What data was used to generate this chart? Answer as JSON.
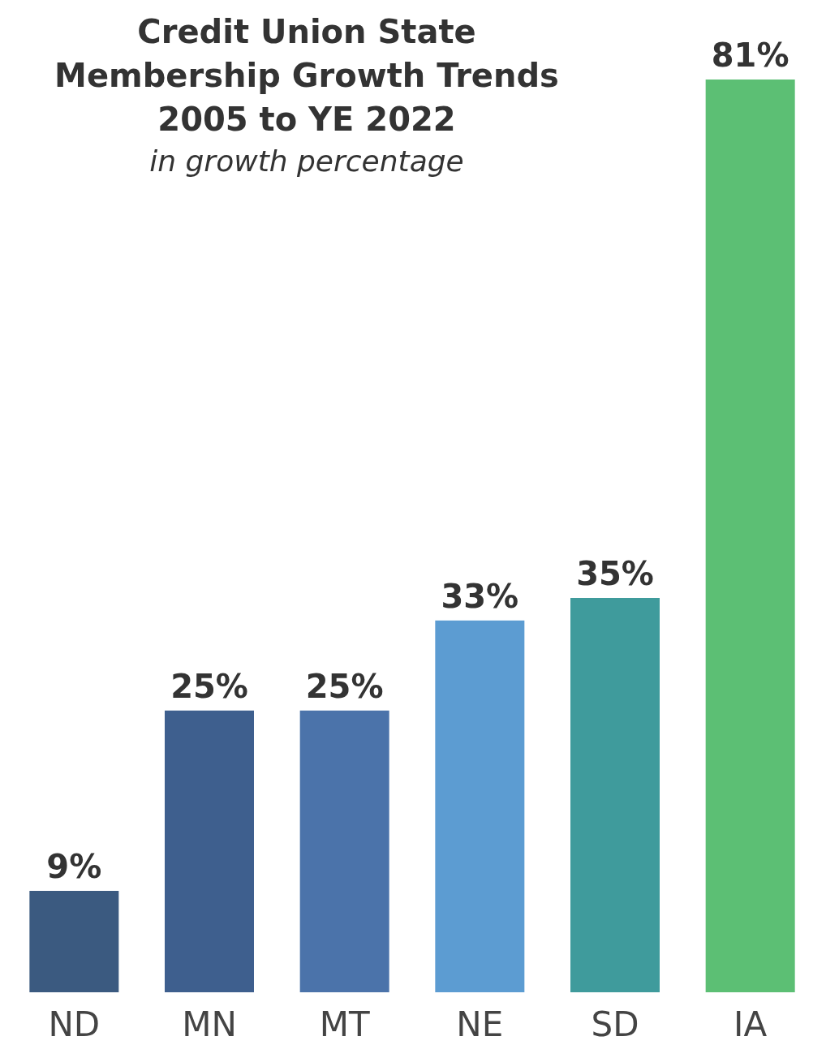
{
  "chart_data": {
    "type": "bar",
    "title": "Credit Union State Membership Growth Trends 2005 to YE 2022",
    "subtitle": "in growth percentage",
    "categories": [
      "ND",
      "MN",
      "MT",
      "NE",
      "SD",
      "IA"
    ],
    "values": [
      9,
      25,
      25,
      33,
      35,
      81
    ],
    "value_labels": [
      "9%",
      "25%",
      "25%",
      "33%",
      "35%",
      "81%"
    ],
    "colors": [
      "#3b5a80",
      "#3e5f8e",
      "#4b73aa",
      "#5c9cd2",
      "#3f9b9c",
      "#5cbf74"
    ]
  }
}
